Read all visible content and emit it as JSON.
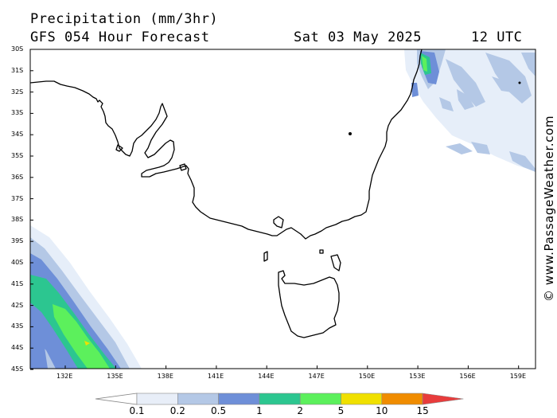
{
  "header": {
    "title": "Precipitation (mm/3hr)",
    "subtitle": "GFS 054 Hour Forecast",
    "date": "Sat 03 May 2025",
    "time": "12 UTC"
  },
  "watermark": "© www.PassageWeather.com",
  "map": {
    "lat_labels": [
      "30S",
      "31S",
      "32S",
      "33S",
      "34S",
      "35S",
      "36S",
      "37S",
      "38S",
      "39S",
      "40S",
      "41S",
      "42S",
      "43S",
      "44S",
      "45S"
    ],
    "lon_labels": [
      "132E",
      "135E",
      "138E",
      "141E",
      "144E",
      "147E",
      "150E",
      "153E",
      "156E",
      "159E"
    ]
  },
  "scale": {
    "labels": [
      "0.1",
      "0.2",
      "0.5",
      "1",
      "2",
      "5",
      "10",
      "15"
    ],
    "colors": [
      "#e8eef8",
      "#b4c8e6",
      "#6e8fd8",
      "#2cc690",
      "#5cf05c",
      "#f0e000",
      "#f08c00",
      "#e83c3c"
    ]
  },
  "colors": {
    "light": "#e6eef9",
    "pale_blue": "#b4c8e6",
    "blue": "#6e8fd8",
    "teal": "#2cc690",
    "green": "#5cf05c",
    "yellow": "#f0e000"
  }
}
